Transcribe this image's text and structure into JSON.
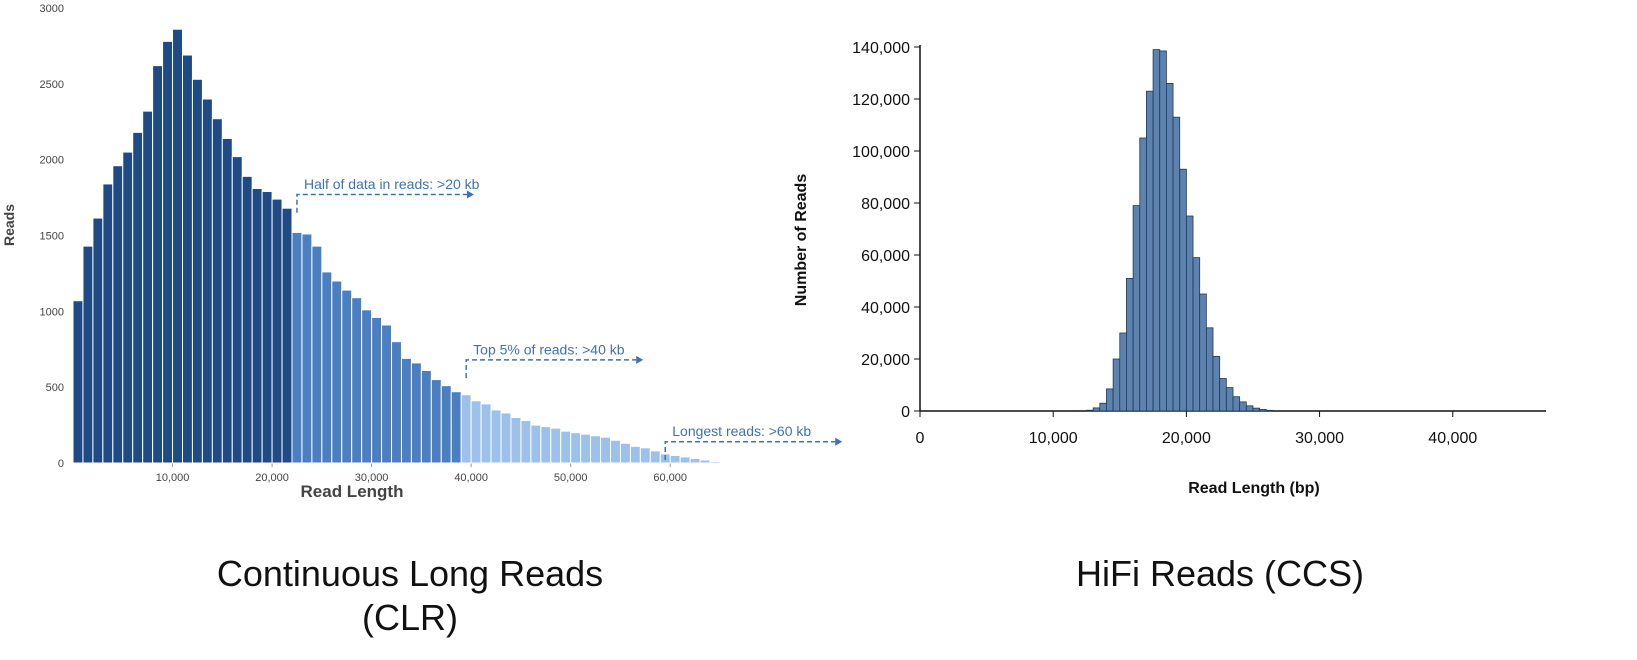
{
  "captions": {
    "clr_line1": "Continuous Long Reads",
    "clr_line2": "(CLR)",
    "hifi": "HiFi Reads (CCS)"
  },
  "chart_data": [
    {
      "type": "bar",
      "xlabel": "Read Length",
      "ylabel": "Reads",
      "xlim": [
        0,
        65000
      ],
      "ylim": [
        0,
        3000
      ],
      "bin_width": 1000,
      "x_ticks": [
        10000,
        20000,
        30000,
        40000,
        50000,
        60000
      ],
      "x_tick_labels": [
        "10,000",
        "20,000",
        "30,000",
        "40,000",
        "50,000",
        "60,000"
      ],
      "y_ticks": [
        0,
        500,
        1000,
        1500,
        2000,
        2500,
        3000
      ],
      "y_tick_labels": [
        "0",
        "500",
        "1000",
        "1500",
        "2000",
        "2500",
        "3000"
      ],
      "values": [
        1070,
        1430,
        1615,
        1840,
        1960,
        2050,
        2180,
        2320,
        2620,
        2780,
        2860,
        2690,
        2530,
        2400,
        2270,
        2140,
        2020,
        1890,
        1810,
        1790,
        1740,
        1680,
        1520,
        1510,
        1430,
        1260,
        1200,
        1140,
        1090,
        1010,
        960,
        910,
        800,
        690,
        660,
        610,
        550,
        510,
        470,
        450,
        410,
        390,
        350,
        330,
        300,
        280,
        250,
        240,
        230,
        210,
        200,
        190,
        180,
        170,
        150,
        130,
        110,
        100,
        80,
        60,
        50,
        40,
        30,
        20,
        10
      ],
      "segment_colors": [
        {
          "from": 0,
          "to": 22000,
          "color": "#1f4a84"
        },
        {
          "from": 22000,
          "to": 39000,
          "color": "#4a7fc1"
        },
        {
          "from": 39000,
          "to": 65000,
          "color": "#9dc1ea"
        }
      ],
      "annotations": [
        {
          "text": "Half of data in reads: >20 kb",
          "x": 22500,
          "arrow_y": 1770,
          "label_y": 1840
        },
        {
          "text": "Top 5% of reads: >40 kb",
          "x": 39500,
          "arrow_y": 680,
          "label_y": 750
        },
        {
          "text": "Longest reads: >60 kb",
          "x": 59500,
          "arrow_y": 140,
          "label_y": 210
        }
      ],
      "annotation_color": "#3f72b5"
    },
    {
      "type": "bar",
      "xlabel": "Read Length (bp)",
      "ylabel": "Number of Reads",
      "xlim": [
        0,
        47000
      ],
      "ylim": [
        0,
        140000
      ],
      "bin_width": 500,
      "x_ticks": [
        0,
        10000,
        20000,
        30000,
        40000
      ],
      "x_tick_labels": [
        "0",
        "10,000",
        "20,000",
        "30,000",
        "40,000"
      ],
      "y_ticks": [
        0,
        20000,
        40000,
        60000,
        80000,
        100000,
        120000,
        140000
      ],
      "y_tick_labels": [
        "0",
        "20,000",
        "40,000",
        "60,000",
        "80,000",
        "100,000",
        "120,000",
        "140,000"
      ],
      "bar_color": "#5d82ad",
      "bar_stroke": "#1e3a5c",
      "bins_start": [
        12500,
        13000,
        13500,
        14000,
        14500,
        15000,
        15500,
        16000,
        16500,
        17000,
        17500,
        18000,
        18500,
        19000,
        19500,
        20000,
        20500,
        21000,
        21500,
        22000,
        22500,
        23000,
        23500,
        24000,
        24500,
        25000,
        25500,
        26000
      ],
      "values": [
        300,
        1200,
        3000,
        8500,
        20000,
        30000,
        51000,
        79000,
        105000,
        123000,
        139000,
        138500,
        126000,
        113000,
        93000,
        75000,
        59000,
        45000,
        32000,
        21000,
        12500,
        9000,
        5500,
        3500,
        2000,
        1100,
        600,
        250
      ]
    }
  ]
}
